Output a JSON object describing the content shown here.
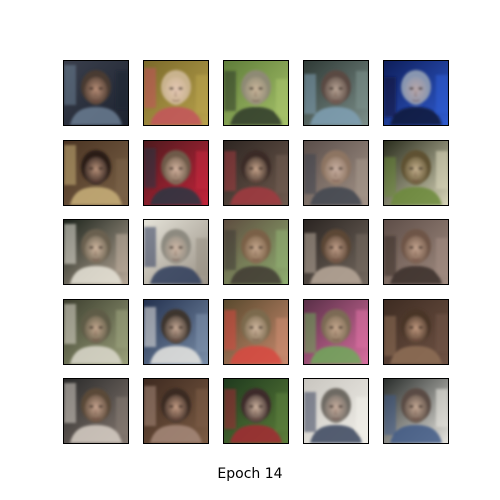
{
  "figure": {
    "caption": "Epoch 14",
    "grid": {
      "rows": 5,
      "cols": 5
    }
  },
  "tiles": [
    {
      "bg": "#3a3f4c",
      "bg2": "#1d2330",
      "skin": "#b88e77",
      "hair": "#4a3a30",
      "accent": "#6a7d92"
    },
    {
      "bg": "#7b6a2b",
      "bg2": "#b8a24c",
      "skin": "#e4c7b4",
      "hair": "#c9b38e",
      "accent": "#c4545c"
    },
    {
      "bg": "#5f7d3a",
      "bg2": "#a7c36a",
      "skin": "#c9b59a",
      "hair": "#8e8a74",
      "accent": "#2e3a2a"
    },
    {
      "bg": "#2f3a36",
      "bg2": "#7c8f8a",
      "skin": "#b8a495",
      "hair": "#5a4a43",
      "accent": "#7fa0b4"
    },
    {
      "bg": "#0e1e5a",
      "bg2": "#2f5bd0",
      "skin": "#b8a6a8",
      "hair": "#8896b0",
      "accent": "#10163a"
    },
    {
      "bg": "#4a3423",
      "bg2": "#7b6247",
      "skin": "#b9927a",
      "hair": "#2a1d19",
      "accent": "#c9b079"
    },
    {
      "bg": "#4e1a1e",
      "bg2": "#c3243a",
      "skin": "#d5b4a0",
      "hair": "#6e5a48",
      "accent": "#2b3542"
    },
    {
      "bg": "#2e2622",
      "bg2": "#6e5a4e",
      "skin": "#c8a58c",
      "hair": "#3a2c26",
      "accent": "#a2383e"
    },
    {
      "bg": "#5a4e4a",
      "bg2": "#a49488",
      "skin": "#c9b0a2",
      "hair": "#8d7562",
      "accent": "#3e4450"
    },
    {
      "bg": "#2b2e1e",
      "bg2": "#d7d4b8",
      "skin": "#c4b08e",
      "hair": "#5e5130",
      "accent": "#6b8a3a"
    },
    {
      "bg": "#1d241c",
      "bg2": "#b7a898",
      "skin": "#d0b7a0",
      "hair": "#6a6150",
      "accent": "#e8e4d8"
    },
    {
      "bg": "#e4e2d8",
      "bg2": "#9a9286",
      "skin": "#cfb8a6",
      "hair": "#8d8a80",
      "accent": "#2f3c5c"
    },
    {
      "bg": "#5e4e40",
      "bg2": "#8fae70",
      "skin": "#c6a88e",
      "hair": "#7a6046",
      "accent": "#3e3a34"
    },
    {
      "bg": "#2b2522",
      "bg2": "#73685e",
      "skin": "#c2a08a",
      "hair": "#5c4636",
      "accent": "#b8a99a"
    },
    {
      "bg": "#5e4e48",
      "bg2": "#a08b80",
      "skin": "#c5a590",
      "hair": "#6e5546",
      "accent": "#3b302b"
    },
    {
      "bg": "#3e4030",
      "bg2": "#9aa07a",
      "skin": "#c3a78e",
      "hair": "#5f5b46",
      "accent": "#dcd9cc"
    },
    {
      "bg": "#243250",
      "bg2": "#7a8ea8",
      "skin": "#c7aa96",
      "hair": "#3e352e",
      "accent": "#e8e6e2"
    },
    {
      "bg": "#5a4a2e",
      "bg2": "#c98a6e",
      "skin": "#d1b8a0",
      "hair": "#7c6a4e",
      "accent": "#d8483e"
    },
    {
      "bg": "#5a3048",
      "bg2": "#d96ea0",
      "skin": "#c6a88e",
      "hair": "#7c6a54",
      "accent": "#6ea85a"
    },
    {
      "bg": "#3e2c22",
      "bg2": "#6e5244",
      "skin": "#c29a80",
      "hair": "#4a3628",
      "accent": "#8e6e56"
    },
    {
      "bg": "#2a2a2a",
      "bg2": "#847870",
      "skin": "#c8a590",
      "hair": "#5a4838",
      "accent": "#d7cfc6"
    },
    {
      "bg": "#3e2a20",
      "bg2": "#7c5c44",
      "skin": "#c69e86",
      "hair": "#3a2a22",
      "accent": "#a6887a"
    },
    {
      "bg": "#1f3a1e",
      "bg2": "#5c7e3a",
      "skin": "#cfb4a0",
      "hair": "#3c2c2a",
      "accent": "#a22c34"
    },
    {
      "bg": "#c9c6c0",
      "bg2": "#f0eee8",
      "skin": "#c8ae9e",
      "hair": "#6e6a64",
      "accent": "#3a465e"
    },
    {
      "bg": "#2a2e2c",
      "bg2": "#e6e4de",
      "skin": "#c6aa96",
      "hair": "#5a4c44",
      "accent": "#3e5a86"
    }
  ]
}
